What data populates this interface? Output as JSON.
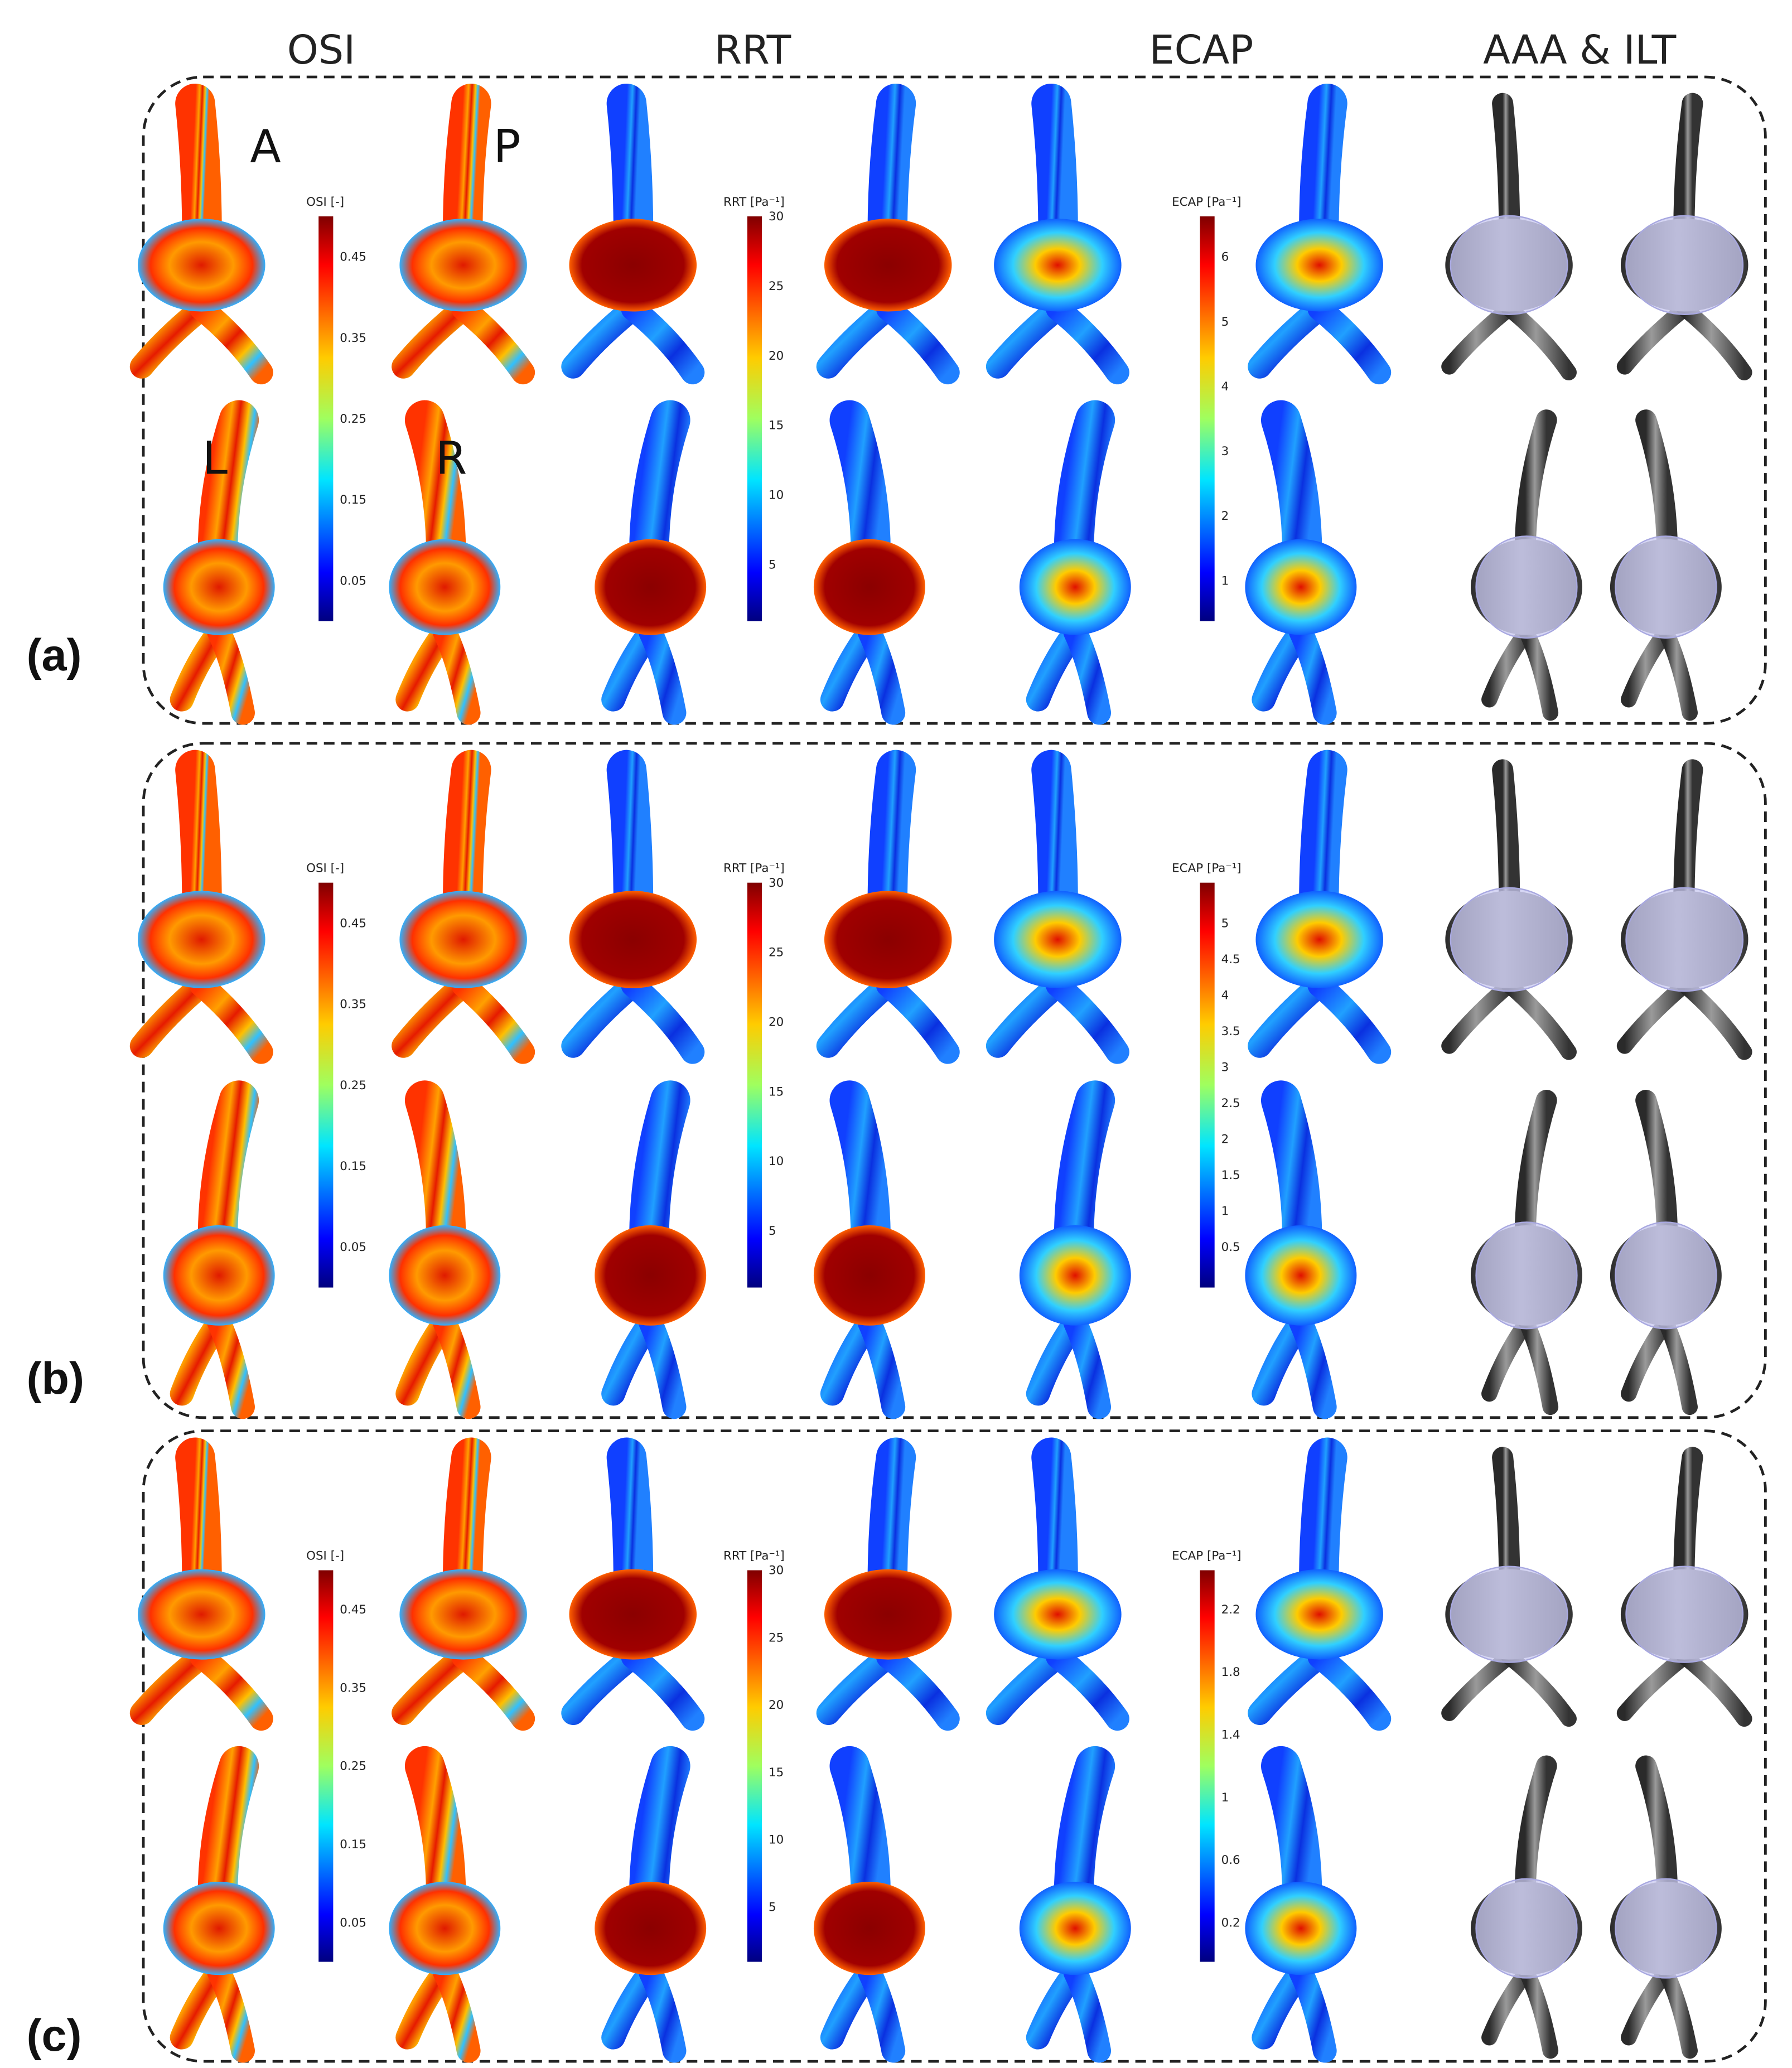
{
  "column_headers": [
    "OSI",
    "RRT",
    "ECAP",
    "AAA & ILT"
  ],
  "panels": [
    {
      "label": "(a)",
      "view_labels": [
        "A",
        "P",
        "L",
        "R"
      ],
      "colorbars": [
        {
          "title": "OSI [-]",
          "ticks": [
            "0.45",
            "0.35",
            "0.25",
            "0.15",
            "0.05"
          ]
        },
        {
          "title": "RRT [Pa⁻¹]",
          "ticks": [
            "30",
            "25",
            "20",
            "15",
            "10",
            "5"
          ]
        },
        {
          "title": "ECAP [Pa⁻¹]",
          "ticks": [
            "6",
            "5",
            "4",
            "3",
            "2",
            "1"
          ]
        }
      ]
    },
    {
      "label": "(b)",
      "colorbars": [
        {
          "title": "OSI [-]",
          "ticks": [
            "0.45",
            "0.35",
            "0.25",
            "0.15",
            "0.05"
          ]
        },
        {
          "title": "RRT [Pa⁻¹]",
          "ticks": [
            "30",
            "25",
            "20",
            "15",
            "10",
            "5"
          ]
        },
        {
          "title": "ECAP [Pa⁻¹]",
          "ticks": [
            "5",
            "4.5",
            "4",
            "3.5",
            "3",
            "2.5",
            "2",
            "1.5",
            "1",
            "0.5"
          ]
        }
      ]
    },
    {
      "label": "(c)",
      "colorbars": [
        {
          "title": "OSI [-]",
          "ticks": [
            "0.45",
            "0.35",
            "0.25",
            "0.15",
            "0.05"
          ]
        },
        {
          "title": "RRT [Pa⁻¹]",
          "ticks": [
            "30",
            "25",
            "20",
            "15",
            "10",
            "5"
          ]
        },
        {
          "title": "ECAP [Pa⁻¹]",
          "ticks": [
            "2.2",
            "1.8",
            "1.4",
            "1",
            "0.6",
            "0.2"
          ]
        }
      ]
    }
  ]
}
